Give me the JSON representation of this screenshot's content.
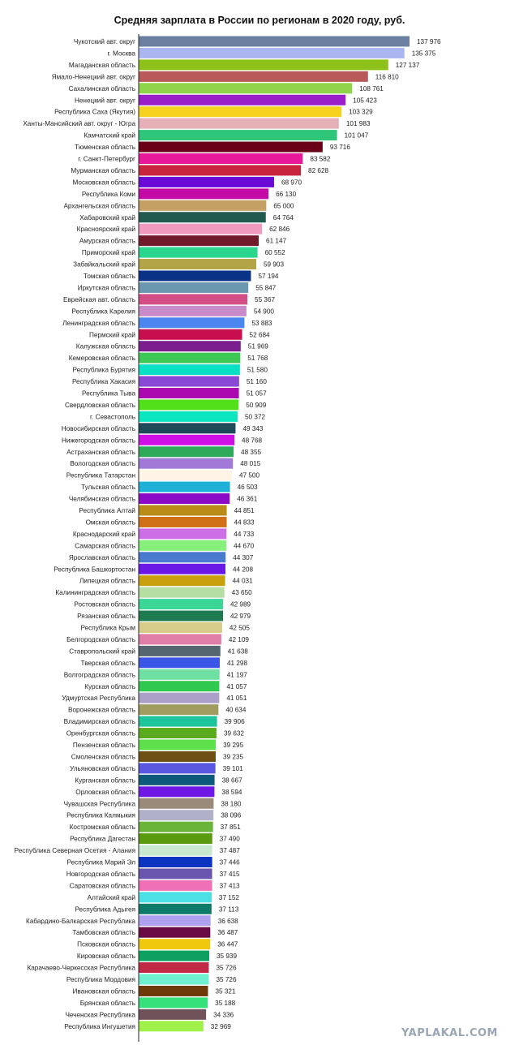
{
  "chart_data": {
    "type": "bar",
    "orientation": "horizontal",
    "title": "Средняя зарплата в России по регионам в 2020 году, руб.",
    "xlim": [
      0,
      137976
    ],
    "categories": [
      "Чукотский авт. округ",
      "г. Москва",
      "Магаданская область",
      "Ямало-Ненецкий авт. округ",
      "Сахалинская область",
      "Ненецкий авт. округ",
      "Республика Саха (Якутия)",
      "Ханты-Мансийский авт. округ - Югра",
      "Камчатский край",
      "Тюменская область",
      "г. Санкт-Петербург",
      "Мурманская область",
      "Московская область",
      "Республика Коми",
      "Архангельская область",
      "Хабаровский край",
      "Красноярский край",
      "Амурская область",
      "Приморский край",
      "Забайкальский край",
      "Томская область",
      "Иркутская область",
      "Еврейская авт. область",
      "Республика Карелия",
      "Ленинградская область",
      "Пермский край",
      "Калужская область",
      "Кемеровская область",
      "Республика Бурятия",
      "Республика Хакасия",
      "Республика Тыва",
      "Свердловская область",
      "г. Севастополь",
      "Новосибирская область",
      "Нижегородская область",
      "Астраханская область",
      "Вологодская область",
      "Республика Татарстан",
      "Тульская область",
      "Челябинская область",
      "Республика Алтай",
      "Омская область",
      "Краснодарский край",
      "Самарская область",
      "Ярославская область",
      "Республика Башкортостан",
      "Липецкая область",
      "Калининградская область",
      "Ростовская область",
      "Рязанская область",
      "Республика Крым",
      "Белгородская область",
      "Ставропольский край",
      "Тверская область",
      "Волгоградская область",
      "Курская область",
      "Удмуртская Республика",
      "Воронежская область",
      "Владимирская область",
      "Оренбургская область",
      "Пензенская область",
      "Смоленская область",
      "Ульяновская область",
      "Курганская область",
      "Орловская область",
      "Чувашская Республика",
      "Республика Калмыкия",
      "Костромская область",
      "Республика Дагестан",
      "Республика Северная  Осетия - Алания",
      "Республика Марий Эл",
      "Новгородская область",
      "Саратовская область",
      "Алтайский край",
      "Республика Адыгея",
      "Кабардино-Балкарская Республика",
      "Тамбовская область",
      "Псковская область",
      "Кировская область",
      "Карачаево-Черкесская Республика",
      "Республика Мордовия",
      "Ивановская область",
      "Брянская область",
      "Чеченская Республика",
      "Республика Ингушетия"
    ],
    "values": [
      137976,
      135375,
      127137,
      116810,
      108761,
      105423,
      103329,
      101983,
      101047,
      93716,
      83582,
      82628,
      68970,
      66130,
      65000,
      64764,
      62846,
      61147,
      60552,
      59903,
      57194,
      55847,
      55367,
      54900,
      53883,
      52684,
      51969,
      51768,
      51580,
      51160,
      51057,
      50909,
      50372,
      49343,
      48768,
      48355,
      48015,
      47500,
      46503,
      46361,
      44851,
      44833,
      44733,
      44670,
      44307,
      44208,
      44031,
      43650,
      42989,
      42979,
      42505,
      42109,
      41638,
      41298,
      41197,
      41057,
      41051,
      40634,
      39906,
      39632,
      39295,
      39235,
      39101,
      38667,
      38594,
      38180,
      38096,
      37851,
      37490,
      37487,
      37446,
      37415,
      37413,
      37152,
      37113,
      36638,
      36487,
      36447,
      35939,
      35726,
      35726,
      35321,
      35188,
      34336,
      32969
    ],
    "value_labels": [
      "137 976",
      "135 375",
      "127 137",
      "116 810",
      "108 761",
      "105 423",
      "103 329",
      "101 983",
      "101 047",
      "93 716",
      "83 582",
      "82 628",
      "68 970",
      "66 130",
      "65 000",
      "64 764",
      "62 846",
      "61 147",
      "60 552",
      "59 903",
      "57 194",
      "55 847",
      "55 367",
      "54 900",
      "53 883",
      "52 684",
      "51 969",
      "51 768",
      "51 580",
      "51 160",
      "51 057",
      "50 909",
      "50 372",
      "49 343",
      "48 768",
      "48 355",
      "48 015",
      "47 500",
      "46 503",
      "46 361",
      "44 851",
      "44 833",
      "44 733",
      "44 670",
      "44 307",
      "44 208",
      "44 031",
      "43 650",
      "42 989",
      "42 979",
      "42 505",
      "42 109",
      "41 638",
      "41 298",
      "41 197",
      "41 057",
      "41 051",
      "40 634",
      "39 906",
      "39 632",
      "39 295",
      "39 235",
      "39 101",
      "38 667",
      "38 594",
      "38 180",
      "38 096",
      "37 851",
      "37 490",
      "37 487",
      "37 446",
      "37 415",
      "37 413",
      "37 152",
      "37 113",
      "36 638",
      "36 487",
      "36 447",
      "35 939",
      "35 726",
      "35 726",
      "35 321",
      "35 188",
      "34 336",
      "32 969"
    ],
    "colors": [
      "#6b80a0",
      "#aab6f0",
      "#8ec21a",
      "#b85a5a",
      "#8fd44a",
      "#9a1fc8",
      "#f5d21e",
      "#e6b0b8",
      "#2fc67a",
      "#6a0018",
      "#e8189a",
      "#c8243e",
      "#6a0ad6",
      "#c40aa6",
      "#c4a064",
      "#235a50",
      "#f09ac0",
      "#701a2c",
      "#2ad68e",
      "#b4a448",
      "#0a3286",
      "#6a96ae",
      "#d24e84",
      "#c88ac8",
      "#4a86ee",
      "#c80e4e",
      "#7a1e8e",
      "#3ec856",
      "#08e0c6",
      "#8a48d6",
      "#aa0ab0",
      "#52e01a",
      "#0ce6c0",
      "#1e4a5a",
      "#d00ee6",
      "#2eaa5a",
      "#a07ad6",
      "#fff4e6",
      "#1eb0d6",
      "#8a0ac6",
      "#b88c16",
      "#d07016",
      "#cc6ee6",
      "#86f07a",
      "#4a7ace",
      "#6a18e6",
      "#c8a00e",
      "#b4dea2",
      "#3ad696",
      "#1f7a50",
      "#d8cc8a",
      "#e07ea8",
      "#566670",
      "#3a56e6",
      "#6ee0a2",
      "#30c84e",
      "#aaa0c8",
      "#a09c60",
      "#1ec49a",
      "#5aaa1e",
      "#5ee04a",
      "#6e5014",
      "#5a58e0",
      "#0e5a7a",
      "#6e18e6",
      "#9a8a7a",
      "#b0b0c8",
      "#6ab43a",
      "#5a9a0e",
      "#c8e8d0",
      "#0a34c0",
      "#6a56ae",
      "#f070b8",
      "#4ae0e6",
      "#0e7a6a",
      "#b0a0f0",
      "#6a0a44",
      "#f0c80e",
      "#0ea05e",
      "#c02a46",
      "#6ef0d0",
      "#6e3a0a",
      "#36e07a",
      "#70525a",
      "#a0f04a"
    ],
    "grid": false,
    "legend": "none"
  },
  "watermark": "YAPLAKAL.COM"
}
